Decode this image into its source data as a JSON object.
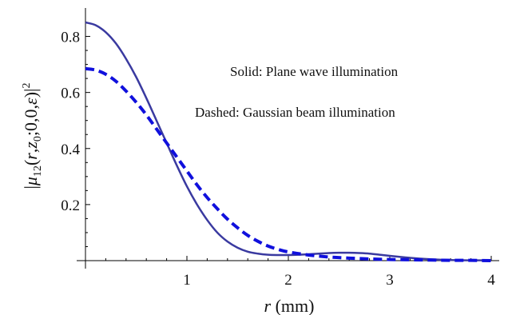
{
  "chart_data": {
    "type": "line",
    "xlabel_parts": {
      "var": "r",
      "unit": " (mm)"
    },
    "ylabel_parts": {
      "open": "|",
      "mu": "μ",
      "sub": "12",
      "args_pre": "(",
      "r": "r",
      "comma1": ",",
      "z": "z",
      "z_sub": "0",
      "middle": ";0,0,",
      "eps": "ε",
      "close": ")|",
      "sup": "2"
    },
    "xlim": [
      0,
      4
    ],
    "ylim": [
      0,
      0.87
    ],
    "xticks": [
      1,
      2,
      3,
      4
    ],
    "xtick_labels": [
      "1",
      "2",
      "3",
      "4"
    ],
    "yticks": [
      0.2,
      0.4,
      0.6,
      0.8
    ],
    "ytick_labels": [
      "0.2",
      "0.4",
      "0.6",
      "0.8"
    ],
    "grid": false,
    "legend": "none",
    "annotations": [
      "Solid: Plane wave illumination",
      "Dashed: Gaussian beam illumination"
    ],
    "series": [
      {
        "style": "solid",
        "color": "#3a3aa0",
        "x": [
          0,
          0.1,
          0.2,
          0.3,
          0.4,
          0.5,
          0.6,
          0.7,
          0.8,
          0.9,
          1.0,
          1.1,
          1.2,
          1.3,
          1.4,
          1.5,
          1.6,
          1.7,
          1.8,
          1.9,
          2.0,
          2.1,
          2.2,
          2.3,
          2.4,
          2.5,
          2.6,
          2.7,
          2.8,
          2.9,
          3.0,
          3.2,
          3.4,
          3.6,
          3.8,
          4.0
        ],
        "y": [
          0.85,
          0.84,
          0.815,
          0.775,
          0.72,
          0.655,
          0.58,
          0.5,
          0.42,
          0.34,
          0.265,
          0.2,
          0.145,
          0.1,
          0.068,
          0.046,
          0.032,
          0.025,
          0.021,
          0.02,
          0.02,
          0.021,
          0.023,
          0.025,
          0.027,
          0.028,
          0.028,
          0.027,
          0.025,
          0.021,
          0.017,
          0.01,
          0.005,
          0.002,
          0.001,
          0.001
        ]
      },
      {
        "style": "dashed",
        "color": "#1010dd",
        "x": [
          0,
          0.1,
          0.2,
          0.3,
          0.4,
          0.5,
          0.6,
          0.7,
          0.8,
          0.9,
          1.0,
          1.1,
          1.2,
          1.3,
          1.4,
          1.5,
          1.6,
          1.7,
          1.8,
          1.9,
          2.0,
          2.2,
          2.4,
          2.6,
          2.8,
          3.0,
          3.2,
          3.4,
          3.6,
          3.8,
          4.0
        ],
        "y": [
          0.685,
          0.68,
          0.665,
          0.64,
          0.605,
          0.565,
          0.52,
          0.47,
          0.42,
          0.37,
          0.32,
          0.27,
          0.225,
          0.185,
          0.148,
          0.117,
          0.09,
          0.069,
          0.052,
          0.04,
          0.031,
          0.02,
          0.013,
          0.009,
          0.006,
          0.004,
          0.003,
          0.002,
          0.001,
          0.001,
          0.0
        ]
      }
    ]
  }
}
